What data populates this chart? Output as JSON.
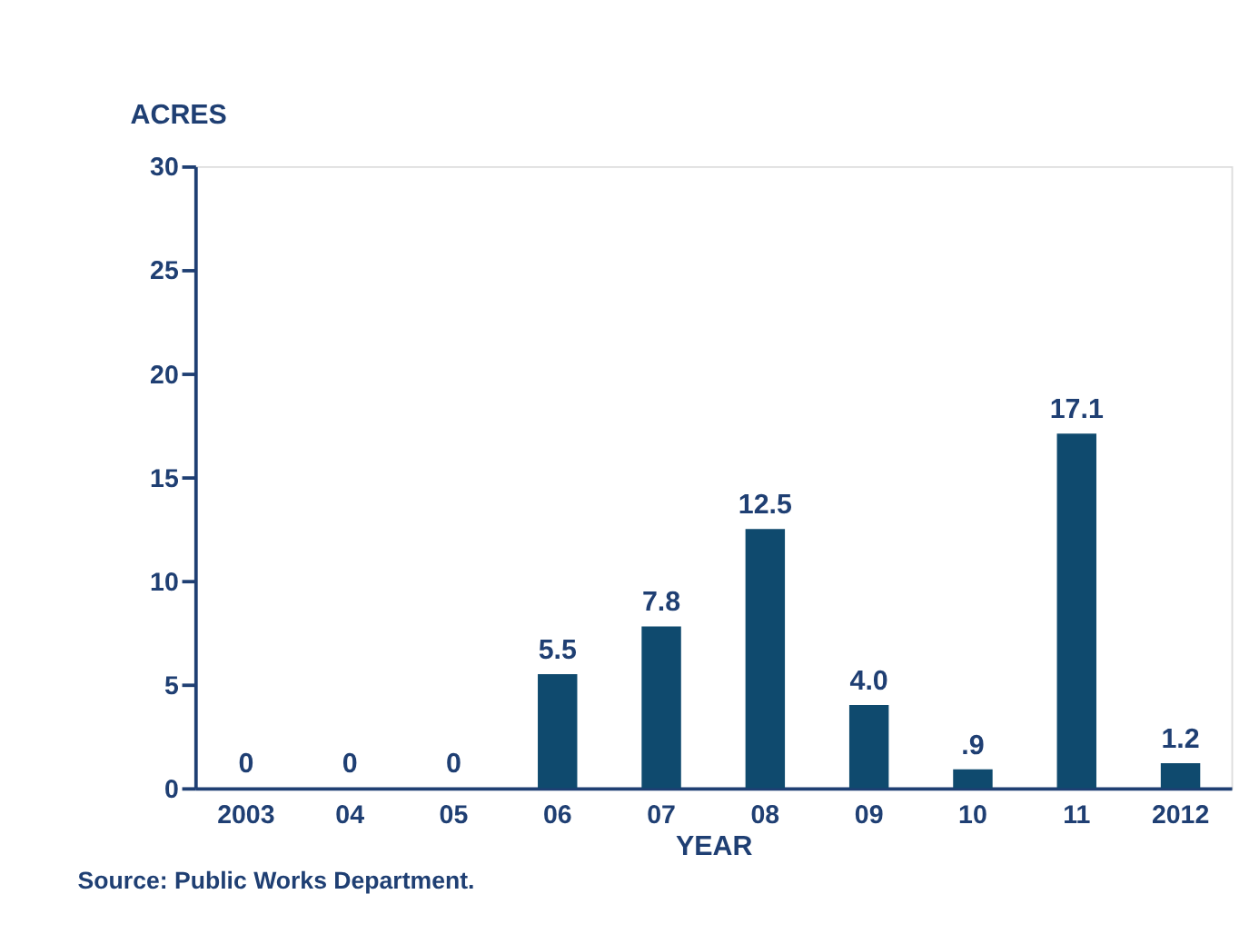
{
  "chart_data": {
    "type": "bar",
    "xlabel": "YEAR",
    "ylabel": "ACRES",
    "categories": [
      "2003",
      "04",
      "05",
      "06",
      "07",
      "08",
      "09",
      "10",
      "11",
      "2012"
    ],
    "values": [
      0,
      0,
      0,
      5.5,
      7.8,
      12.5,
      4.0,
      0.9,
      17.1,
      1.2
    ],
    "value_labels": [
      "0",
      "0",
      "0",
      "5.5",
      "7.8",
      "12.5",
      "4.0",
      ".9",
      "17.1",
      "1.2"
    ],
    "color": "#0f4a6e",
    "ylim": [
      0,
      30
    ],
    "yticks": [
      0,
      5,
      10,
      15,
      20,
      25,
      30
    ],
    "grid": false,
    "annotations": [
      "Source: Public Works Department."
    ]
  }
}
